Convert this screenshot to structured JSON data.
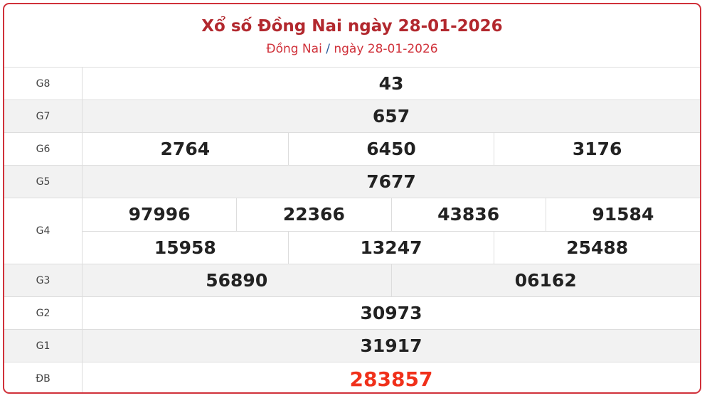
{
  "header": {
    "title": "Xổ số Đồng Nai ngày 28-01-2026",
    "breadcrumb_province": "Đồng Nai",
    "breadcrumb_sep": "/",
    "breadcrumb_date": "ngày 28-01-2026"
  },
  "prizes": [
    {
      "label": "G8",
      "rows": [
        [
          "43"
        ]
      ]
    },
    {
      "label": "G7",
      "rows": [
        [
          "657"
        ]
      ]
    },
    {
      "label": "G6",
      "rows": [
        [
          "2764",
          "6450",
          "3176"
        ]
      ]
    },
    {
      "label": "G5",
      "rows": [
        [
          "7677"
        ]
      ]
    },
    {
      "label": "G4",
      "rows": [
        [
          "97996",
          "22366",
          "43836",
          "91584"
        ],
        [
          "15958",
          "13247",
          "25488"
        ]
      ]
    },
    {
      "label": "G3",
      "rows": [
        [
          "56890",
          "06162"
        ]
      ]
    },
    {
      "label": "G2",
      "rows": [
        [
          "30973"
        ]
      ]
    },
    {
      "label": "G1",
      "rows": [
        [
          "31917"
        ]
      ]
    },
    {
      "label": "ĐB",
      "rows": [
        [
          "283857"
        ]
      ]
    }
  ],
  "colors": {
    "border": "#d0313a",
    "title": "#b2282e",
    "special": "#f0301a",
    "stripe": "#f2f2f2"
  }
}
